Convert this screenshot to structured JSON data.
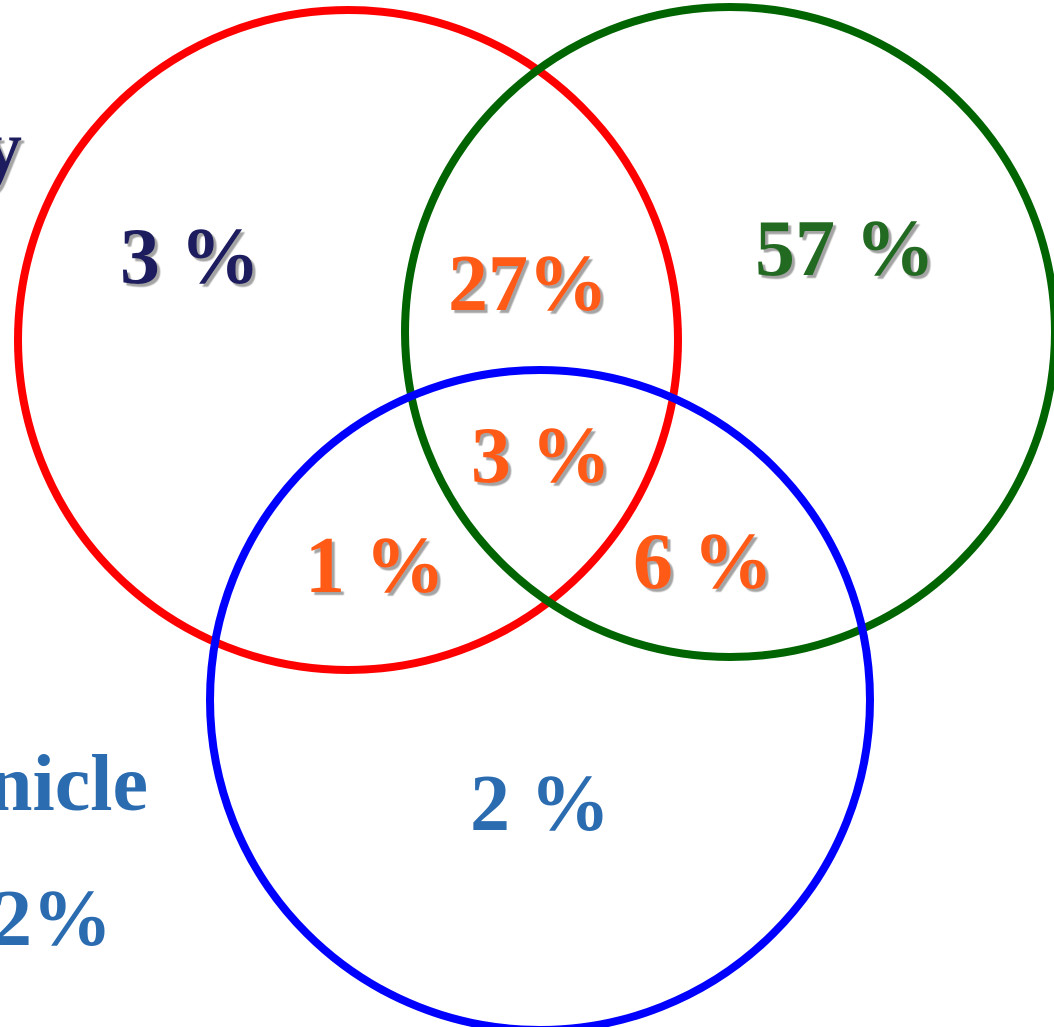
{
  "diagram": {
    "circles": [
      {
        "id": "red-set",
        "color": "#ff0000"
      },
      {
        "id": "green-set",
        "color": "#006400"
      },
      {
        "id": "blue-set",
        "color": "#0000ff"
      }
    ],
    "regions": {
      "red_only": {
        "label": "3 %",
        "color": "#1a1a5e"
      },
      "green_only": {
        "label": "57 %",
        "color": "#226b22"
      },
      "blue_only": {
        "label": "2 %",
        "color": "#2b6cb0"
      },
      "red_green": {
        "label": "27%",
        "color": "#ff5a14"
      },
      "red_blue": {
        "label": "1 %",
        "color": "#ff5a14"
      },
      "green_blue": {
        "label": "6 %",
        "color": "#ff5a14"
      },
      "all_three": {
        "label": "3 %",
        "color": "#ff5a14"
      }
    },
    "side_labels": {
      "top_left_fragment": {
        "label": "y",
        "color": "#1a1a5e"
      },
      "blue_set_name_fragment": {
        "label": "nicle",
        "color": "#2b6cb0"
      },
      "blue_set_total_fragment": {
        "label": "2%",
        "color": "#2b6cb0"
      }
    }
  }
}
